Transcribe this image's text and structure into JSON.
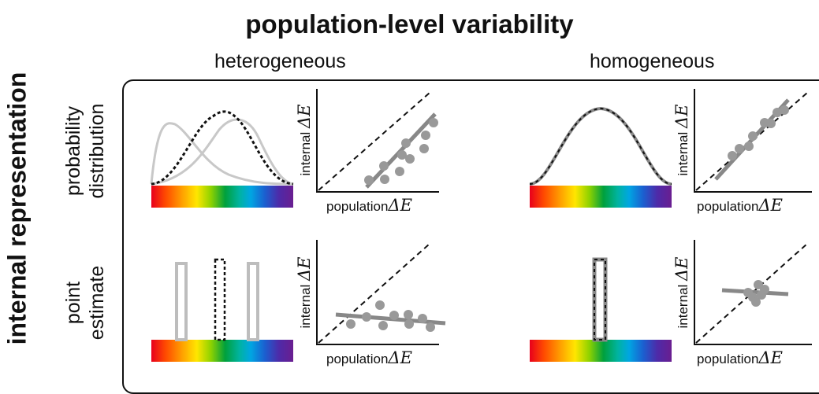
{
  "title": "population-level variability",
  "columns": {
    "left": "heterogeneous",
    "right": "homogeneous"
  },
  "side_title": "internal representation",
  "rows": {
    "top": [
      "probability",
      "distribution"
    ],
    "bottom": [
      "point",
      "estimate"
    ]
  },
  "axes": {
    "x_label": "population",
    "y_label": "internal",
    "symbol": "ΔE"
  },
  "colors": {
    "individual_curve": "#c8c8c8",
    "population_curve": "#111111",
    "fit_line": "#888888",
    "points": "#999999"
  }
}
